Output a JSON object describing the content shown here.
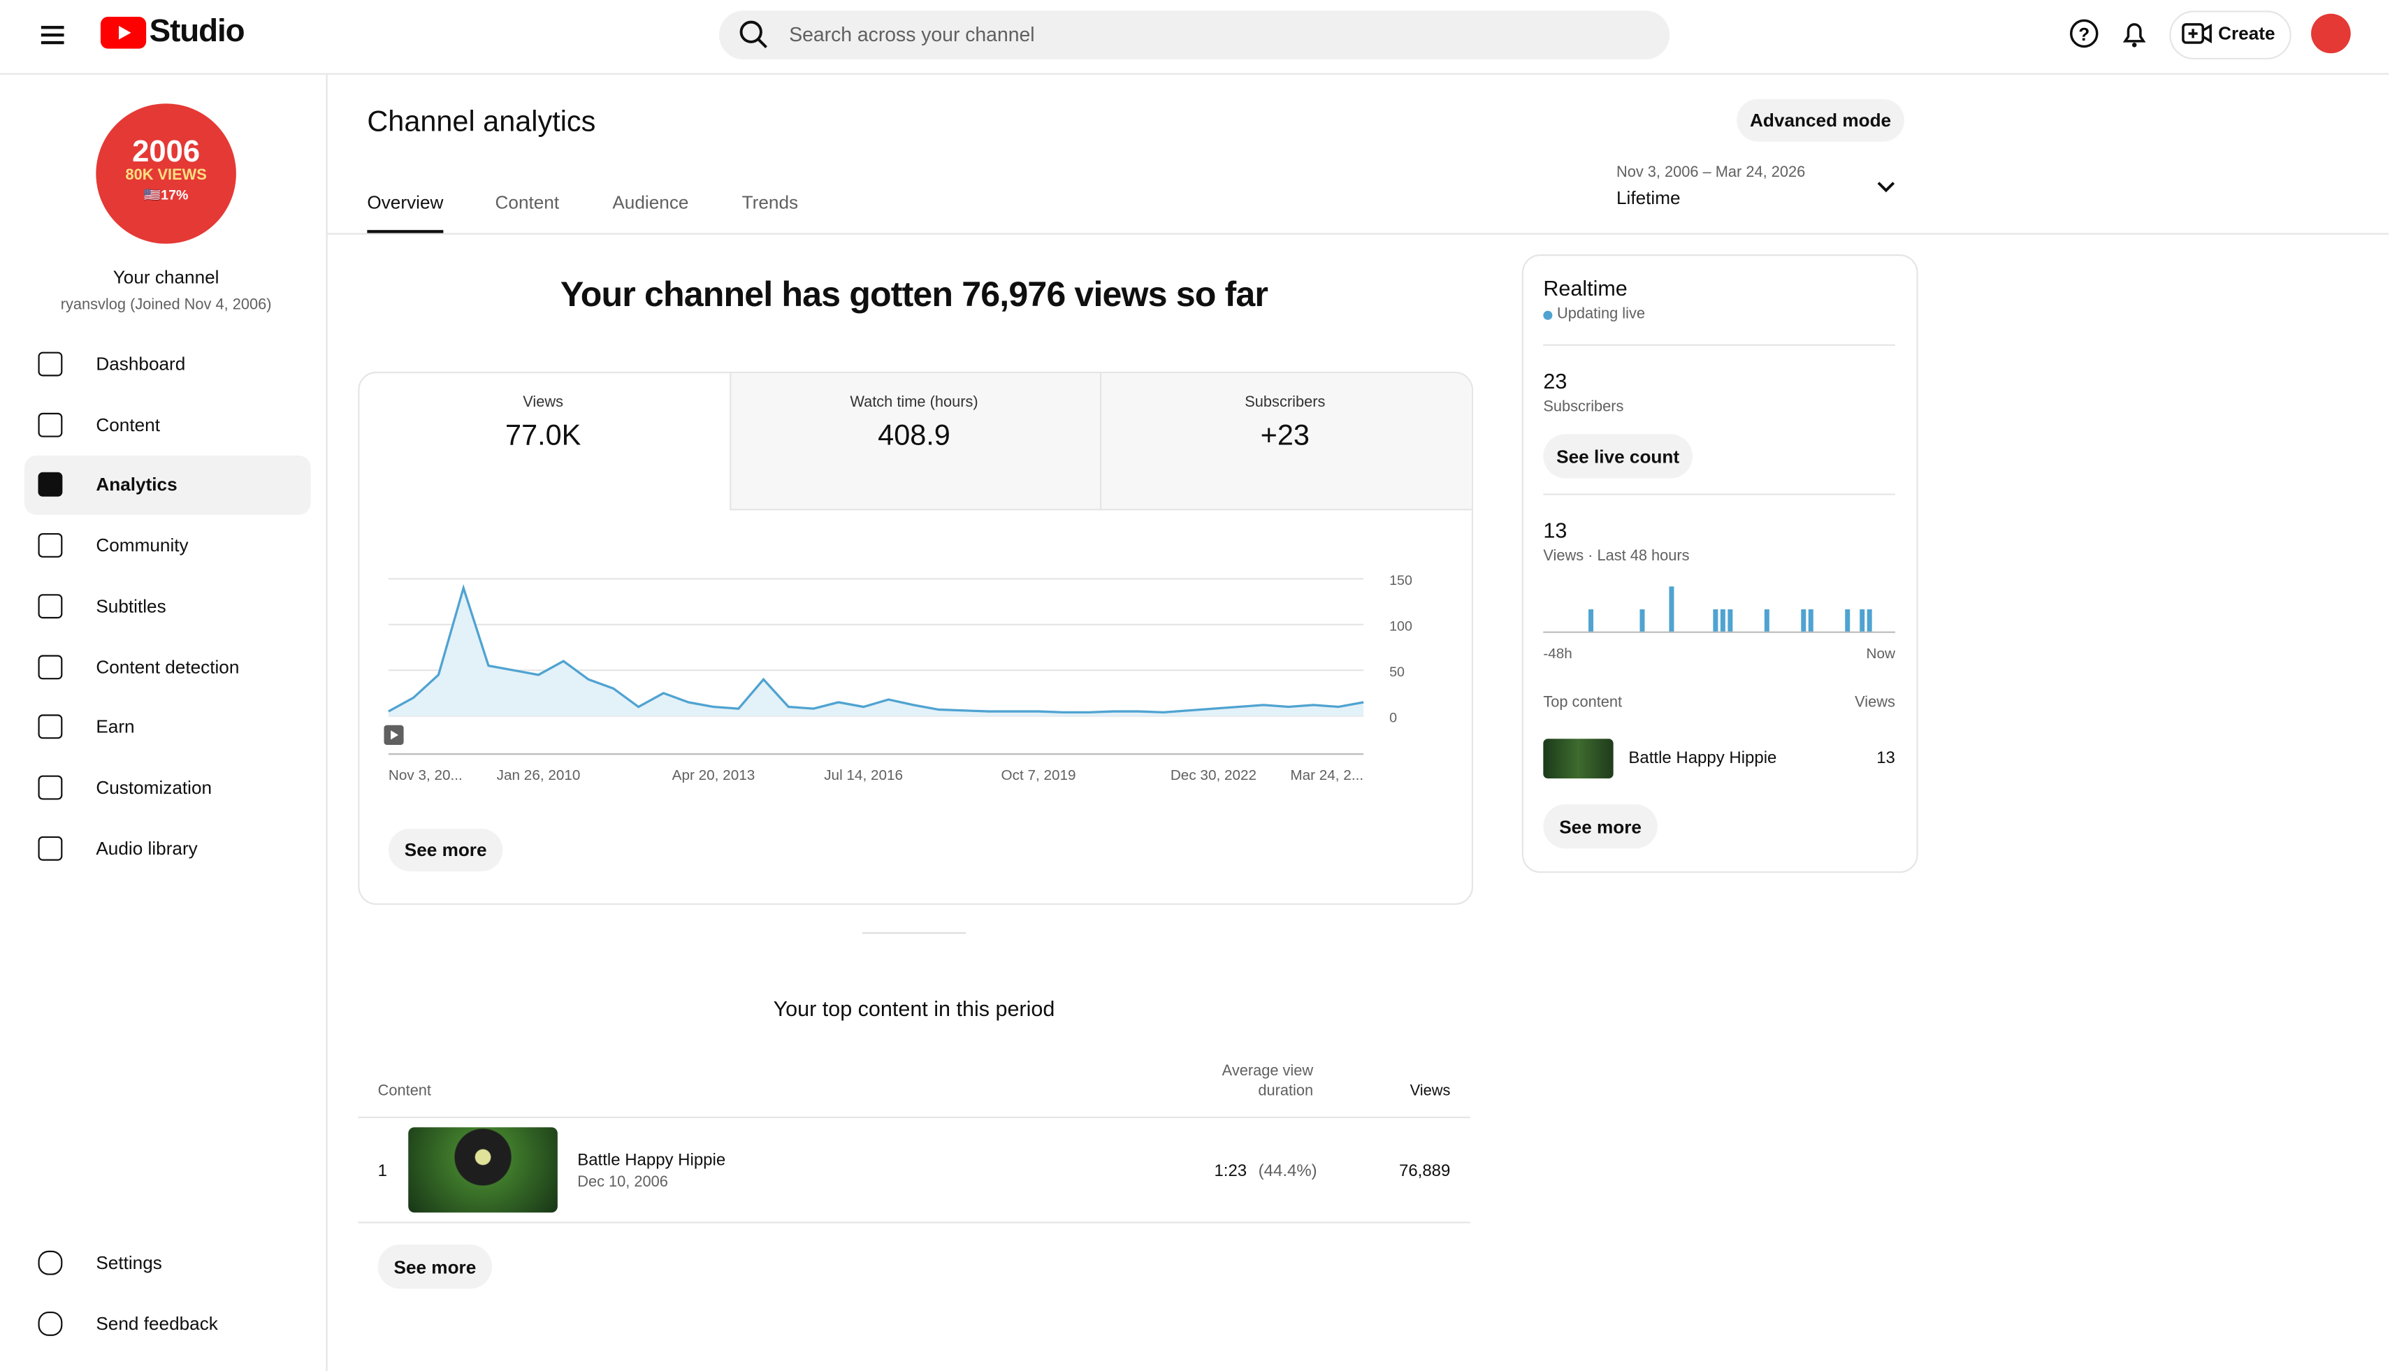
{
  "header": {
    "logo": "Studio",
    "search_placeholder": "Search across your channel",
    "create": "Create"
  },
  "channel": {
    "avatar_lines": [
      "2006",
      "80K VIEWS",
      "🇺🇸17%"
    ],
    "name": "Your channel",
    "handle": "ryansvlog (Joined Nov 4, 2006)"
  },
  "nav": [
    "Dashboard",
    "Content",
    "Analytics",
    "Community",
    "Subtitles",
    "Content detection",
    "Earn",
    "Customization",
    "Audio library"
  ],
  "nav_bottom": [
    "Settings",
    "Send feedback"
  ],
  "page": {
    "title": "Channel analytics",
    "advanced": "Advanced mode",
    "date_range": "Nov 3, 2006 – Mar 24, 2026",
    "period": "Lifetime",
    "tabs": [
      "Overview",
      "Content",
      "Audience",
      "Trends"
    ]
  },
  "summary": "Your channel has gotten 76,976 views so far",
  "metrics": [
    {
      "label": "Views",
      "value": "77.0K"
    },
    {
      "label": "Watch time (hours)",
      "value": "408.9"
    },
    {
      "label": "Subscribers",
      "value": "+23"
    }
  ],
  "overview_see_more": "See more",
  "realtime": {
    "title": "Realtime",
    "status": "Updating live",
    "subscribers": "23",
    "subscribers_label": "Subscribers",
    "see_live": "See live count",
    "views": "13",
    "views_label": "Views · Last 48 hours",
    "top_label": "Top content",
    "views_col": "Views",
    "item": {
      "title": "Battle Happy Hippie",
      "views": "13"
    },
    "see_more": "See more"
  },
  "top_content": {
    "title": "Your top content in this period",
    "columns": [
      "Content",
      "Average view duration",
      "Views"
    ],
    "rows": [
      {
        "rank": "1",
        "title": "Battle Happy Hippie",
        "date": "Dec 10, 2006",
        "duration": "1:23",
        "percent": "(44.4%)",
        "views": "76,889"
      }
    ],
    "see_more": "See more"
  },
  "chart_data": [
    {
      "type": "line",
      "color": "#4fa3d1",
      "grid": true,
      "categories": [
        "Nov 3, 20...",
        null,
        null,
        null,
        null,
        null,
        "Jan 26, 2010",
        null,
        null,
        null,
        null,
        null,
        null,
        "Apr 20, 2013",
        null,
        null,
        null,
        null,
        null,
        "Jul 14, 2016",
        null,
        null,
        null,
        null,
        null,
        null,
        "Oct 7, 2019",
        null,
        null,
        null,
        null,
        null,
        null,
        "Dec 30, 2022",
        null,
        null,
        null,
        null,
        null,
        "Mar 24, 2..."
      ],
      "values": [
        5,
        20,
        45,
        140,
        55,
        50,
        45,
        60,
        40,
        30,
        10,
        25,
        15,
        10,
        8,
        40,
        10,
        8,
        15,
        10,
        18,
        12,
        7,
        6,
        5,
        5,
        5,
        4,
        4,
        5,
        5,
        4,
        6,
        8,
        10,
        12,
        10,
        12,
        10,
        15
      ],
      "ylim": [
        0,
        150
      ],
      "yticks": [
        0,
        50,
        100,
        150
      ]
    },
    {
      "type": "bar",
      "color": "#4fa3d1",
      "ylim": [
        0,
        2
      ],
      "categories": [
        "-48h",
        null,
        null,
        null,
        null,
        null,
        null,
        null,
        null,
        null,
        null,
        null,
        null,
        null,
        null,
        null,
        null,
        null,
        null,
        null,
        null,
        null,
        null,
        null,
        null,
        null,
        null,
        null,
        null,
        null,
        null,
        null,
        null,
        null,
        null,
        null,
        null,
        null,
        null,
        null,
        null,
        null,
        null,
        null,
        null,
        null,
        null,
        "Now"
      ],
      "values": [
        0,
        0,
        0,
        0,
        0,
        0,
        1,
        0,
        0,
        0,
        0,
        0,
        0,
        1,
        0,
        0,
        0,
        2,
        0,
        0,
        0,
        0,
        0,
        1,
        1,
        1,
        0,
        0,
        0,
        0,
        1,
        0,
        0,
        0,
        0,
        1,
        1,
        0,
        0,
        0,
        0,
        1,
        0,
        1,
        1,
        0,
        0,
        0
      ]
    }
  ]
}
